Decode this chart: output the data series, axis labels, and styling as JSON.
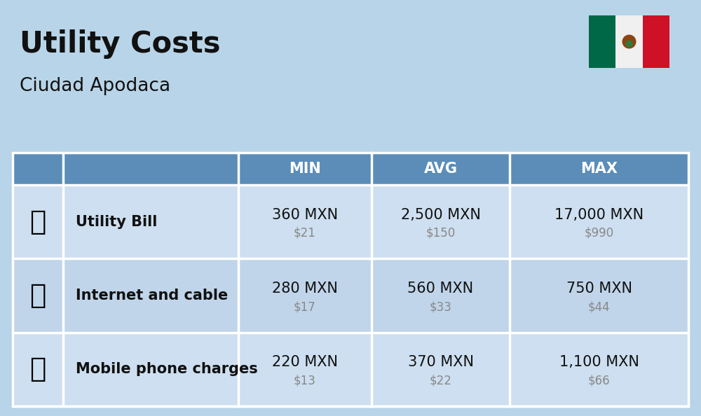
{
  "title": "Utility Costs",
  "subtitle": "Ciudad Apodaca",
  "bg_color": "#b8d4e8",
  "header_color": "#5b8db8",
  "header_text_color": "#ffffff",
  "row_color": "#cddff0",
  "row_alt_color": "#c0d5ea",
  "col_headers": [
    "MIN",
    "AVG",
    "MAX"
  ],
  "rows": [
    {
      "label": "Utility Bill",
      "min_mxn": "360 MXN",
      "min_usd": "$21",
      "avg_mxn": "2,500 MXN",
      "avg_usd": "$150",
      "max_mxn": "17,000 MXN",
      "max_usd": "$990"
    },
    {
      "label": "Internet and cable",
      "min_mxn": "280 MXN",
      "min_usd": "$17",
      "avg_mxn": "560 MXN",
      "avg_usd": "$33",
      "max_mxn": "750 MXN",
      "max_usd": "$44"
    },
    {
      "label": "Mobile phone charges",
      "min_mxn": "220 MXN",
      "min_usd": "$13",
      "avg_mxn": "370 MXN",
      "avg_usd": "$22",
      "max_mxn": "1,100 MXN",
      "max_usd": "$66"
    }
  ],
  "title_fontsize": 30,
  "subtitle_fontsize": 19,
  "header_fontsize": 15,
  "label_fontsize": 15,
  "data_fontsize": 15,
  "usd_fontsize": 12,
  "usd_color": "#888888",
  "cell_text_color": "#111111",
  "label_text_color": "#111111",
  "border_color": "#ffffff",
  "flag_green": "#006847",
  "flag_white": "#f0f0f0",
  "flag_red": "#ce1126"
}
